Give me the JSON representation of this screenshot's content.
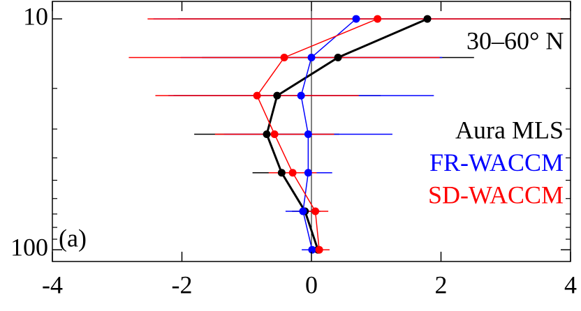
{
  "chart_data": {
    "type": "profile",
    "annotations": [
      "30–60° N",
      "(a)"
    ],
    "y": [
      10,
      14.7,
      21.5,
      31.6,
      46.4,
      68.1,
      100
    ],
    "ylim": [
      112.4,
      8.4
    ],
    "ylog": true,
    "yticks": [
      10,
      100
    ],
    "yminor_ticks": [
      20,
      30,
      40,
      50,
      60,
      70,
      80,
      90
    ],
    "xlim": [
      -4,
      4
    ],
    "xticks": [
      -4,
      -2,
      0,
      2,
      4
    ],
    "zero_line": true,
    "legend": "right",
    "series": [
      {
        "name": "Aura MLS",
        "color": "#000000",
        "line_width": 3,
        "values": [
          1.79,
          0.41,
          -0.53,
          -0.69,
          -0.46,
          -0.1,
          0.1
        ],
        "errors": [
          3.85,
          2.1,
          1.6,
          1.12,
          0.45,
          0.2,
          0.15
        ]
      },
      {
        "name": "FR-WACCM",
        "color": "#0000ff",
        "line_width": 1.5,
        "values": [
          0.69,
          0.0,
          -0.16,
          -0.05,
          -0.05,
          -0.13,
          0.01
        ],
        "errors": [
          3.13,
          2.02,
          2.05,
          1.3,
          0.37,
          0.27,
          0.16
        ]
      },
      {
        "name": "SD-WACCM",
        "color": "#ff0000",
        "line_width": 1.5,
        "values": [
          1.02,
          -0.42,
          -0.84,
          -0.57,
          -0.29,
          0.06,
          0.12
        ],
        "errors": [
          3.55,
          2.4,
          1.57,
          0.92,
          0.37,
          0.2,
          0.16
        ]
      }
    ]
  }
}
